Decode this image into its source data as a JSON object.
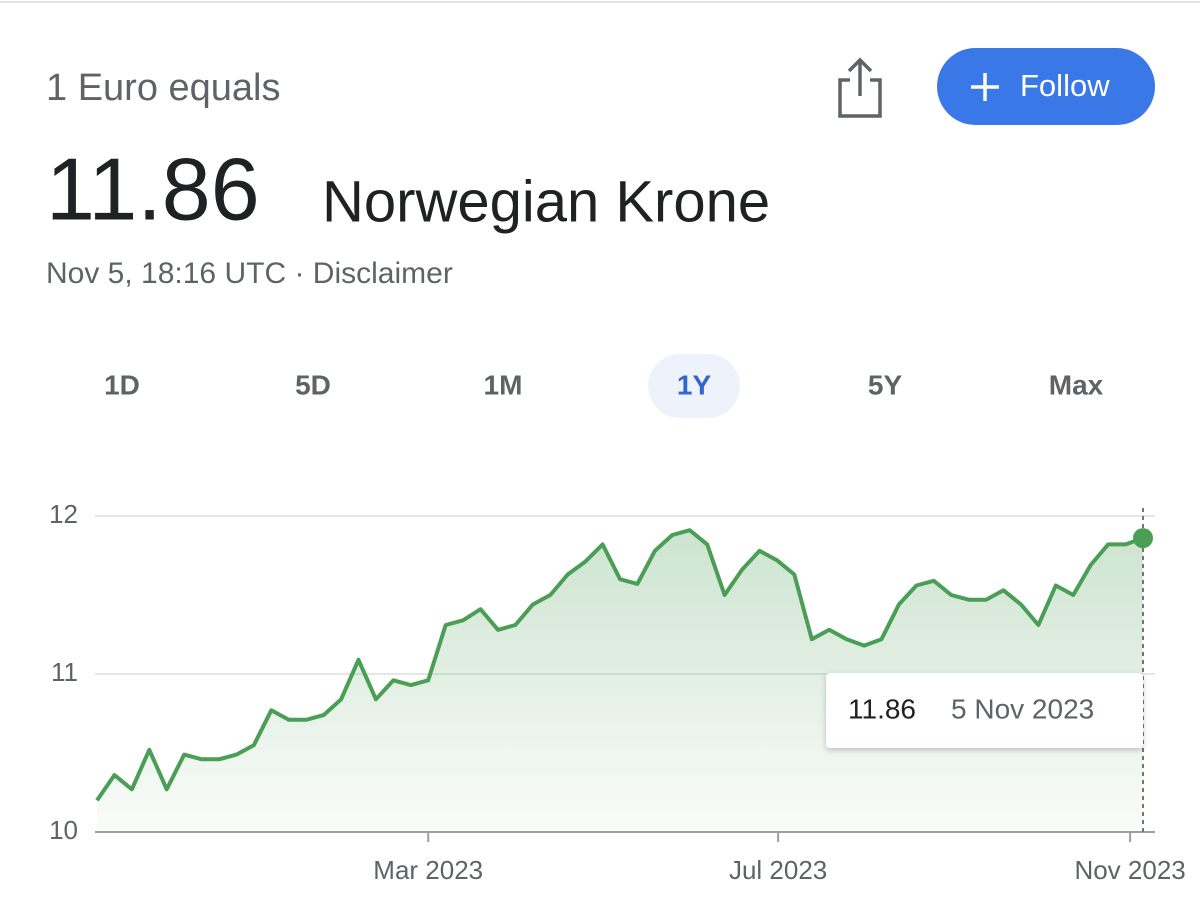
{
  "header": {
    "label": "1 Euro equals",
    "value": "11.86",
    "currency": "Norwegian Krone",
    "timestamp": "Nov 5, 18:16 UTC",
    "separator": "·",
    "disclaimer": "Disclaimer"
  },
  "follow_button": "Follow",
  "ranges": [
    "1D",
    "5D",
    "1M",
    "1Y",
    "5Y",
    "Max"
  ],
  "selected_range": 3,
  "chart_data": {
    "type": "line",
    "color": "#4b9e56",
    "values": [
      10.2,
      10.36,
      10.27,
      10.52,
      10.27,
      10.49,
      10.46,
      10.46,
      10.49,
      10.55,
      10.77,
      10.71,
      10.71,
      10.74,
      10.84,
      11.09,
      10.84,
      10.96,
      10.93,
      10.96,
      11.31,
      11.34,
      11.41,
      11.28,
      11.31,
      11.44,
      11.5,
      11.63,
      11.71,
      11.82,
      11.6,
      11.57,
      11.78,
      11.88,
      11.91,
      11.82,
      11.5,
      11.66,
      11.78,
      11.72,
      11.63,
      11.22,
      11.28,
      11.22,
      11.18,
      11.22,
      11.44,
      11.56,
      11.59,
      11.5,
      11.47,
      11.47,
      11.53,
      11.44,
      11.31,
      11.56,
      11.5,
      11.69,
      11.82,
      11.82,
      11.86
    ],
    "xlim": [
      0,
      60
    ],
    "xticks": [
      {
        "value": 19,
        "label": "Mar 2023"
      },
      {
        "value": 39.07,
        "label": "Jul 2023"
      },
      {
        "value": 59.26,
        "label": "Nov 2023"
      }
    ],
    "ylim": [
      10,
      12
    ],
    "yticks": [
      10,
      11,
      12
    ],
    "grid": true,
    "tooltip": {
      "value": "11.86",
      "date": "5 Nov 2023"
    }
  }
}
